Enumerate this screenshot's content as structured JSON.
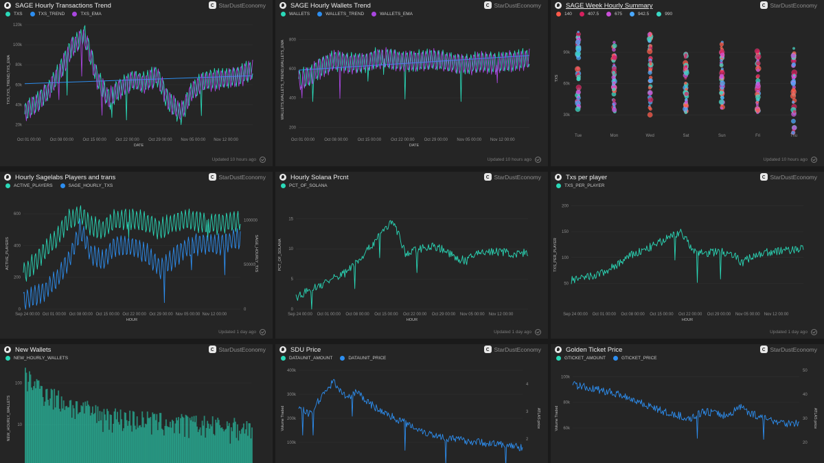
{
  "brand": "StarDustEconomy",
  "colors": {
    "background": "#1a1a1a",
    "panel": "#252525",
    "teal": "#2ad9b8",
    "blue": "#2d8ef0",
    "purple": "#a946e0",
    "red": "#ff5a4a",
    "crimson": "#d6205e",
    "magenta": "#c94fd8",
    "lightblue": "#4aa8ff",
    "cyan": "#3ad9c5"
  },
  "panels": [
    {
      "title": "SAGE Hourly Transactions Trend",
      "updated": "Updated 10 hours ago",
      "legend": [
        {
          "label": "TXS",
          "color": "#2ad9b8"
        },
        {
          "label": "TXS_TREND",
          "color": "#2d8ef0"
        },
        {
          "label": "TXS_EMA",
          "color": "#a946e0"
        }
      ],
      "chart_data": {
        "type": "line",
        "x_ticks": [
          "Oct 01 00:00",
          "Oct 08 00:00",
          "Oct 15 00:00",
          "Oct 22 00:00",
          "Oct 29 00:00",
          "Nov 05 00:00",
          "Nov 12 00:00"
        ],
        "y_ticks": [
          "20k",
          "40k",
          "60k",
          "80k",
          "100k",
          "120k"
        ],
        "ylim": [
          10000,
          120000
        ],
        "xlabel": "DATE",
        "ylabel": "TXS,TXS_TREND,TXS_EMA",
        "series": [
          {
            "name": "TXS",
            "style": "oscillating",
            "values": [
              32000,
              42000,
              55000,
              75000,
              100000,
              110000,
              68000,
              45000,
              58000,
              65000,
              62000,
              70000,
              42000,
              30000,
              55000,
              64000,
              66000,
              67000,
              70000,
              75000
            ]
          },
          {
            "name": "TXS_TREND",
            "style": "line",
            "values": [
              61000,
              69000
            ]
          },
          {
            "name": "TXS_EMA",
            "style": "oscillating",
            "values": [
              32000,
              41000,
              54000,
              74000,
              98000,
              108000,
              66000,
              46000,
              57000,
              64000,
              61000,
              69000,
              44000,
              32000,
              54000,
              63000,
              65000,
              66000,
              69000,
              74000
            ]
          }
        ]
      }
    },
    {
      "title": "SAGE Hourly Wallets Trend",
      "updated": "Updated 10 hours ago",
      "legend": [
        {
          "label": "WALLETS",
          "color": "#2ad9b8"
        },
        {
          "label": "WALLETS_TREND",
          "color": "#2d8ef0"
        },
        {
          "label": "WALLETS_EMA",
          "color": "#a946e0"
        }
      ],
      "chart_data": {
        "type": "line",
        "x_ticks": [
          "Oct 01 00:00",
          "Oct 08 00:00",
          "Oct 15 00:00",
          "Oct 22 00:00",
          "Oct 29 00:00",
          "Nov 05 00:00",
          "Nov 12 00:00"
        ],
        "y_ticks": [
          "200",
          "400",
          "600",
          "800"
        ],
        "ylim": [
          150,
          900
        ],
        "xlabel": "DATE",
        "ylabel": "WALLETS,WALLETS_TREND,WALLETS_EMA",
        "series": [
          {
            "name": "WALLETS",
            "style": "oscillating",
            "values": [
              520,
              560,
              620,
              660,
              640,
              640,
              660,
              680,
              660,
              650,
              660,
              670,
              650,
              640,
              630,
              650,
              640,
              650,
              660,
              670
            ]
          },
          {
            "name": "WALLETS_TREND",
            "style": "line",
            "values": [
              590,
              690
            ]
          },
          {
            "name": "WALLETS_EMA",
            "style": "oscillating",
            "values": [
              515,
              555,
              615,
              655,
              635,
              635,
              655,
              675,
              655,
              645,
              655,
              665,
              645,
              635,
              625,
              645,
              635,
              645,
              655,
              665
            ]
          }
        ]
      }
    },
    {
      "title": "SAGE Week Hourly Summary",
      "updated": "Updated 10 hours ago",
      "legend": [
        {
          "label": "140",
          "color": "#ff5a4a"
        },
        {
          "label": "407.5",
          "color": "#d6205e"
        },
        {
          "label": "675",
          "color": "#c94fd8"
        },
        {
          "label": "942.5",
          "color": "#4aa8ff"
        },
        {
          "label": "990",
          "color": "#3ad9c5"
        }
      ],
      "chart_data": {
        "type": "scatter",
        "categories": [
          "Tue",
          "Mon",
          "Wed",
          "Sat",
          "Sun",
          "Fri",
          "Thu"
        ],
        "y_ticks": [
          "30k",
          "60k",
          "90k"
        ],
        "ylim": [
          15000,
          115000
        ],
        "ylabel": "TXS",
        "ranges": [
          [
            35000,
            110000
          ],
          [
            32000,
            100000
          ],
          [
            28000,
            110000
          ],
          [
            32000,
            90000
          ],
          [
            33000,
            100000
          ],
          [
            30000,
            92000
          ],
          [
            12000,
            95000
          ]
        ]
      }
    },
    {
      "title": "Hourly Sagelabs Players and trans",
      "updated": "Updated 1 day ago",
      "legend": [
        {
          "label": "ACTIVE_PLAYERS",
          "color": "#2ad9b8"
        },
        {
          "label": "SAGE_HOURLY_TXS",
          "color": "#2d8ef0"
        }
      ],
      "chart_data": {
        "type": "line",
        "x_ticks": [
          "Sep 24 00:00",
          "Oct 01 00:00",
          "Oct 08 00:00",
          "Oct 15 00:00",
          "Oct 22 00:00",
          "Oct 29 00:00",
          "Nov 05 00:00",
          "Nov 12 00:00"
        ],
        "y_ticks": [
          "0",
          "200",
          "400",
          "600"
        ],
        "y2_ticks": [
          "0",
          "50000",
          "100000"
        ],
        "ylim": [
          0,
          700
        ],
        "y2lim": [
          0,
          125000
        ],
        "xlabel": "HOUR",
        "ylabel": "ACTIVE_PLAYERS",
        "y2label": "SAGE_HOURLY_TXS",
        "series": [
          {
            "name": "ACTIVE_PLAYERS",
            "style": "oscillating",
            "values": [
              220,
              290,
              380,
              460,
              560,
              600,
              520,
              500,
              560,
              570,
              560,
              540,
              500,
              540,
              560,
              560,
              540,
              540,
              550,
              560
            ]
          },
          {
            "name": "SAGE_HOURLY_TXS",
            "style": "oscillating",
            "values": [
              10000,
              15000,
              22000,
              35000,
              55000,
              90000,
              60000,
              55000,
              70000,
              72000,
              68000,
              60000,
              45000,
              55000,
              68000,
              72000,
              74000,
              72000,
              76000,
              80000
            ]
          }
        ]
      }
    },
    {
      "title": "Hourly Solana Prcnt",
      "updated": "Updated 1 day ago",
      "legend": [
        {
          "label": "PCT_OF_SOLANA",
          "color": "#2ad9b8"
        }
      ],
      "chart_data": {
        "type": "line",
        "x_ticks": [
          "Sep 24 00:00",
          "Oct 01 00:00",
          "Oct 08 00:00",
          "Oct 15 00:00",
          "Oct 22 00:00",
          "Oct 29 00:00",
          "Nov 05 00:00",
          "Nov 12 00:00"
        ],
        "y_ticks": [
          "0",
          "5",
          "10",
          "15"
        ],
        "ylim": [
          0,
          18
        ],
        "xlabel": "HOUR",
        "ylabel": "PCT_OF_SOLANA",
        "series": [
          {
            "name": "PCT_OF_SOLANA",
            "style": "noisy",
            "values": [
              2,
              3,
              4,
              5,
              6,
              8,
              10,
              13,
              14.5,
              9,
              10,
              10.5,
              10,
              8.5,
              8,
              9.5,
              9.5,
              9.5,
              9,
              9.5
            ]
          }
        ]
      }
    },
    {
      "title": "Txs per player",
      "updated": "Updated 1 day ago",
      "legend": [
        {
          "label": "TXS_PER_PLAYER",
          "color": "#2ad9b8"
        }
      ],
      "chart_data": {
        "type": "line",
        "x_ticks": [
          "Sep 24 00:00",
          "Oct 01 00:00",
          "Oct 08 00:00",
          "Oct 15 00:00",
          "Oct 22 00:00",
          "Oct 29 00:00",
          "Nov 05 00:00",
          "Nov 12 00:00"
        ],
        "y_ticks": [
          "50",
          "100",
          "150",
          "200"
        ],
        "ylim": [
          0,
          210
        ],
        "xlabel": "HOUR",
        "ylabel": "TXS_PER_PLAYER",
        "series": [
          {
            "name": "TXS_PER_PLAYER",
            "style": "noisy",
            "values": [
              55,
              60,
              65,
              75,
              90,
              105,
              115,
              125,
              140,
              150,
              110,
              108,
              112,
              110,
              90,
              105,
              110,
              112,
              115,
              118
            ]
          }
        ]
      }
    },
    {
      "title": "New Wallets",
      "updated": "",
      "legend": [
        {
          "label": "NEW_HOURLY_WALLETS",
          "color": "#2ad9b8"
        }
      ],
      "chart_data": {
        "type": "bar",
        "y_ticks": [
          "10",
          "100"
        ],
        "yscale": "log",
        "ylim": [
          1,
          200
        ],
        "ylabel": "NEW_HOURLY_WALLETS",
        "values": [
          150,
          90,
          60,
          40,
          30,
          25,
          20,
          18,
          16,
          15,
          14,
          13,
          12,
          12,
          11,
          11,
          10,
          10,
          9,
          9
        ]
      }
    },
    {
      "title": "SDU Price",
      "updated": "",
      "legend": [
        {
          "label": "DATAUNIT_AMOUNT",
          "color": "#2ad9b8"
        },
        {
          "label": "DATAUNIT_PRICE",
          "color": "#2d8ef0"
        }
      ],
      "chart_data": {
        "type": "line",
        "y_ticks": [
          "100k",
          "200k",
          "300k",
          "400k"
        ],
        "y2_ticks": [
          "2",
          "3",
          "4"
        ],
        "ylim": [
          0,
          400000
        ],
        "y2lim": [
          1,
          4.5
        ],
        "ylabel": "Volume Traded",
        "y2label": "ATLAS price",
        "series": [
          {
            "name": "DATAUNIT_PRICE",
            "style": "noisy",
            "values": [
              3.1,
              2.9,
              3.6,
              4.1,
              3.5,
              3.7,
              3.3,
              3.0,
              2.8,
              2.6,
              2.4,
              2.2,
              2.1,
              2.0,
              1.95,
              1.9,
              1.85,
              1.8,
              1.75,
              1.7
            ]
          }
        ]
      }
    },
    {
      "title": "Golden Ticket Price",
      "updated": "",
      "legend": [
        {
          "label": "GTICKET_AMOUNT",
          "color": "#2ad9b8"
        },
        {
          "label": "GTICKET_PRICE",
          "color": "#2d8ef0"
        }
      ],
      "chart_data": {
        "type": "line",
        "y_ticks": [
          "60k",
          "80k",
          "100k"
        ],
        "y2_ticks": [
          "20",
          "30",
          "40",
          "50"
        ],
        "ylim": [
          30000,
          105000
        ],
        "y2lim": [
          10,
          50
        ],
        "ylabel": "Volume Traded",
        "y2label": "ATLAS price",
        "series": [
          {
            "name": "GTICKET_PRICE",
            "style": "noisy",
            "values": [
              44,
              43,
              42,
              41,
              40,
              38,
              36,
              34,
              32,
              31,
              30,
              33,
              32,
              31,
              35,
              32,
              30,
              29,
              28,
              28
            ]
          }
        ]
      }
    }
  ]
}
